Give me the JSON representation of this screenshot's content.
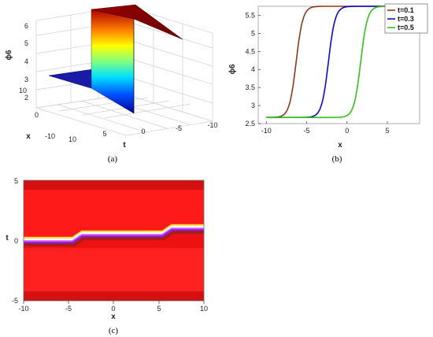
{
  "panels": {
    "a": {
      "caption": "(a)",
      "chart_data": {
        "type": "surface",
        "zlabel": "ϕ6",
        "xlabel": "x",
        "ylabel": "t",
        "zticks": [
          "2",
          "3",
          "4",
          "5",
          "6"
        ],
        "xticks": [
          "10",
          "0",
          "-10"
        ],
        "yticks": [
          "10",
          "5",
          "0",
          "-5",
          "-10"
        ],
        "z_low": 2.67,
        "z_high": 5.75
      }
    },
    "b": {
      "caption": "(b)",
      "chart_data": {
        "type": "line",
        "xlabel": "x",
        "ylabel": "ϕ6",
        "xlim": [
          -11,
          9
        ],
        "ylim": [
          2.5,
          5.75
        ],
        "xticks": [
          -10,
          -5,
          0,
          5
        ],
        "yticks": [
          2.5,
          3,
          3.5,
          4,
          4.5,
          5,
          5.5
        ],
        "series": [
          {
            "name": "t=0.1",
            "color": "#8b3a1a",
            "low": 2.67,
            "high": 5.75,
            "center": -6.3,
            "width": 0.42
          },
          {
            "name": "t=0.3",
            "color": "#0a0ac8",
            "low": 2.67,
            "high": 5.75,
            "center": -2.3,
            "width": 0.42
          },
          {
            "name": "t=0.5",
            "color": "#33c21a",
            "low": 2.67,
            "high": 5.75,
            "center": 1.7,
            "width": 0.42
          }
        ]
      }
    },
    "c": {
      "caption": "(c)",
      "chart_data": {
        "type": "heatmap",
        "xlabel": "x",
        "ylabel": "t",
        "xlim": [
          -10,
          10
        ],
        "ylim": [
          -5,
          5
        ],
        "xticks": [
          "-10",
          "-5",
          "0",
          "5",
          "10"
        ],
        "yticks": [
          "5",
          "0",
          "-5"
        ],
        "front_steps": [
          -4,
          6
        ],
        "front_levels_t": [
          -0.2,
          0.2,
          0.8
        ]
      }
    }
  }
}
